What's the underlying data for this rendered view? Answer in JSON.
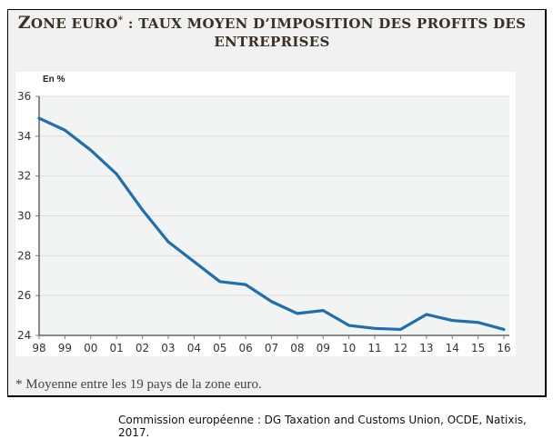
{
  "title_first_letters": "Z",
  "title_first_rest": "ONE EURO",
  "title_sup": "*",
  "title_rest": " : TAUX MOYEN D’IMPOSITION DES PROFITS DES",
  "title_line2": "ENTREPRISES",
  "unit_label": "En %",
  "footnote": "* Moyenne entre les 19 pays de la zone euro.",
  "source": "Commission européenne : DG Taxation and Customs Union, OCDE, Natixis, 2017.",
  "colors": {
    "line": "#1f6fae",
    "plot_bg": "#f2f3f3",
    "grid": "#dcdcdc"
  },
  "chart_data": {
    "type": "line",
    "title": "Zone euro* : taux moyen d’imposition des profits des entreprises",
    "xlabel": "",
    "ylabel": "En %",
    "categories": [
      "98",
      "99",
      "00",
      "01",
      "02",
      "03",
      "04",
      "05",
      "06",
      "07",
      "08",
      "09",
      "10",
      "11",
      "12",
      "13",
      "14",
      "15",
      "16"
    ],
    "series": [
      {
        "name": "Taux moyen d'imposition des profits (zone euro)",
        "values": [
          34.9,
          34.3,
          33.3,
          32.1,
          30.3,
          28.7,
          27.7,
          26.7,
          26.55,
          25.7,
          25.1,
          25.25,
          24.5,
          24.35,
          24.3,
          25.05,
          24.75,
          24.65,
          24.3
        ]
      }
    ],
    "yticks": [
      24,
      26,
      28,
      30,
      32,
      34,
      36
    ],
    "ylim": [
      24,
      36
    ],
    "grid": true,
    "legend": "none"
  }
}
